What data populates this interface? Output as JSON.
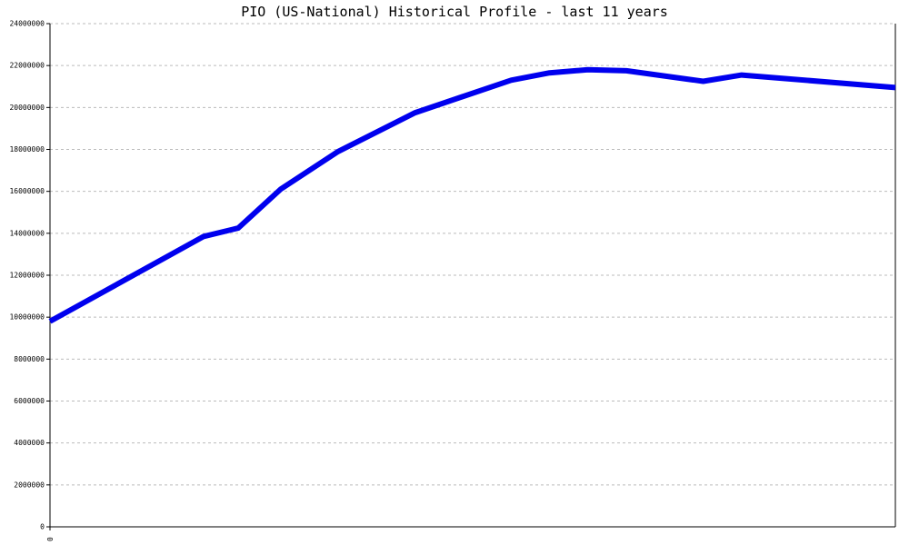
{
  "chart_data": {
    "type": "line",
    "title": "PIO (US-National) Historical Profile - last 11 years",
    "xlabel": "",
    "ylabel": "",
    "x_tick_labels": [
      "0"
    ],
    "y_ticks": [
      0,
      2000000,
      4000000,
      6000000,
      8000000,
      10000000,
      12000000,
      14000000,
      16000000,
      18000000,
      20000000,
      22000000,
      24000000
    ],
    "y_tick_labels": [
      "0",
      "2000000",
      "4000000",
      "6000000",
      "8000000",
      "10000000",
      "12000000",
      "14000000",
      "16000000",
      "18000000",
      "20000000",
      "22000000",
      "24000000"
    ],
    "ylim": [
      0,
      24000000
    ],
    "xlim": [
      0,
      22
    ],
    "grid": true,
    "legend": "none",
    "series": [
      {
        "color": "#0000ee",
        "x": [
          0,
          4,
          4.9,
          6,
          7.5,
          9.5,
          12,
          13,
          14,
          15,
          17,
          18,
          22
        ],
        "y": [
          9800000,
          13850000,
          14250000,
          16100000,
          17900000,
          19750000,
          21300000,
          21650000,
          21800000,
          21750000,
          21250000,
          21550000,
          20950000
        ]
      }
    ]
  }
}
